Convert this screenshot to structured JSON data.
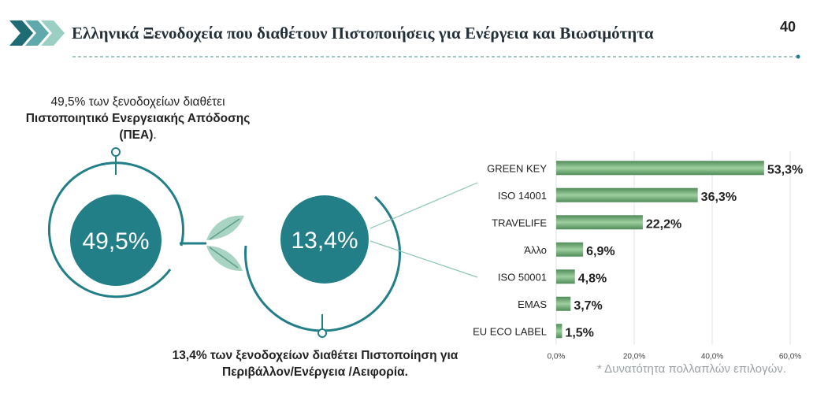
{
  "header": {
    "title": "Ελληνικά Ξενοδοχεία που διαθέτουν Πιστοποιήσεις για Ενέργεια και Βιωσιμότητα",
    "page_number": "40"
  },
  "left_stat": {
    "value": "49,5%",
    "caption_pre": "49,5% των ξενοδοχείων διαθέτει",
    "caption_bold": "Πιστοποιητικό Ενεργειακής Απόδοσης (ΠΕΑ)",
    "caption_post": "."
  },
  "right_stat": {
    "value": "13,4%",
    "caption_pre": "13,4% των ξενοδοχείων διαθέτει ",
    "caption_bold": "Πιστοποίηση για Περιβάλλον/Ενέργεια /Αειφορία."
  },
  "note": "* Δυνατότητα πολλαπλών επιλογών.",
  "colors": {
    "teal": "#237f87",
    "bar_dark": "#4f8c58",
    "bar_light": "#9ecf9e",
    "leaf": "#a9d3c3",
    "dashed": "#6ea8a6",
    "chevron_dark": "#1f6b73",
    "chevron_light": "#9ccfc4"
  },
  "chart_data": {
    "type": "bar",
    "orientation": "horizontal",
    "categories": [
      "GREEN KEY",
      "ISO 14001",
      "TRAVELIFE",
      "Άλλο",
      "ISO 50001",
      "EMAS",
      "EU ECO LABEL"
    ],
    "values": [
      53.3,
      36.3,
      22.2,
      6.9,
      4.8,
      3.7,
      1.5
    ],
    "value_labels": [
      "53,3%",
      "36,3%",
      "22,2%",
      "6,9%",
      "4,8%",
      "3,7%",
      "1,5%"
    ],
    "xlim": [
      0,
      60
    ],
    "xticks": [
      "0,0%",
      "20,0%",
      "40,0%",
      "60,0%"
    ],
    "xtick_values": [
      0,
      20,
      40,
      60
    ],
    "grid": "vertical",
    "title": "",
    "xlabel": "",
    "ylabel": ""
  }
}
